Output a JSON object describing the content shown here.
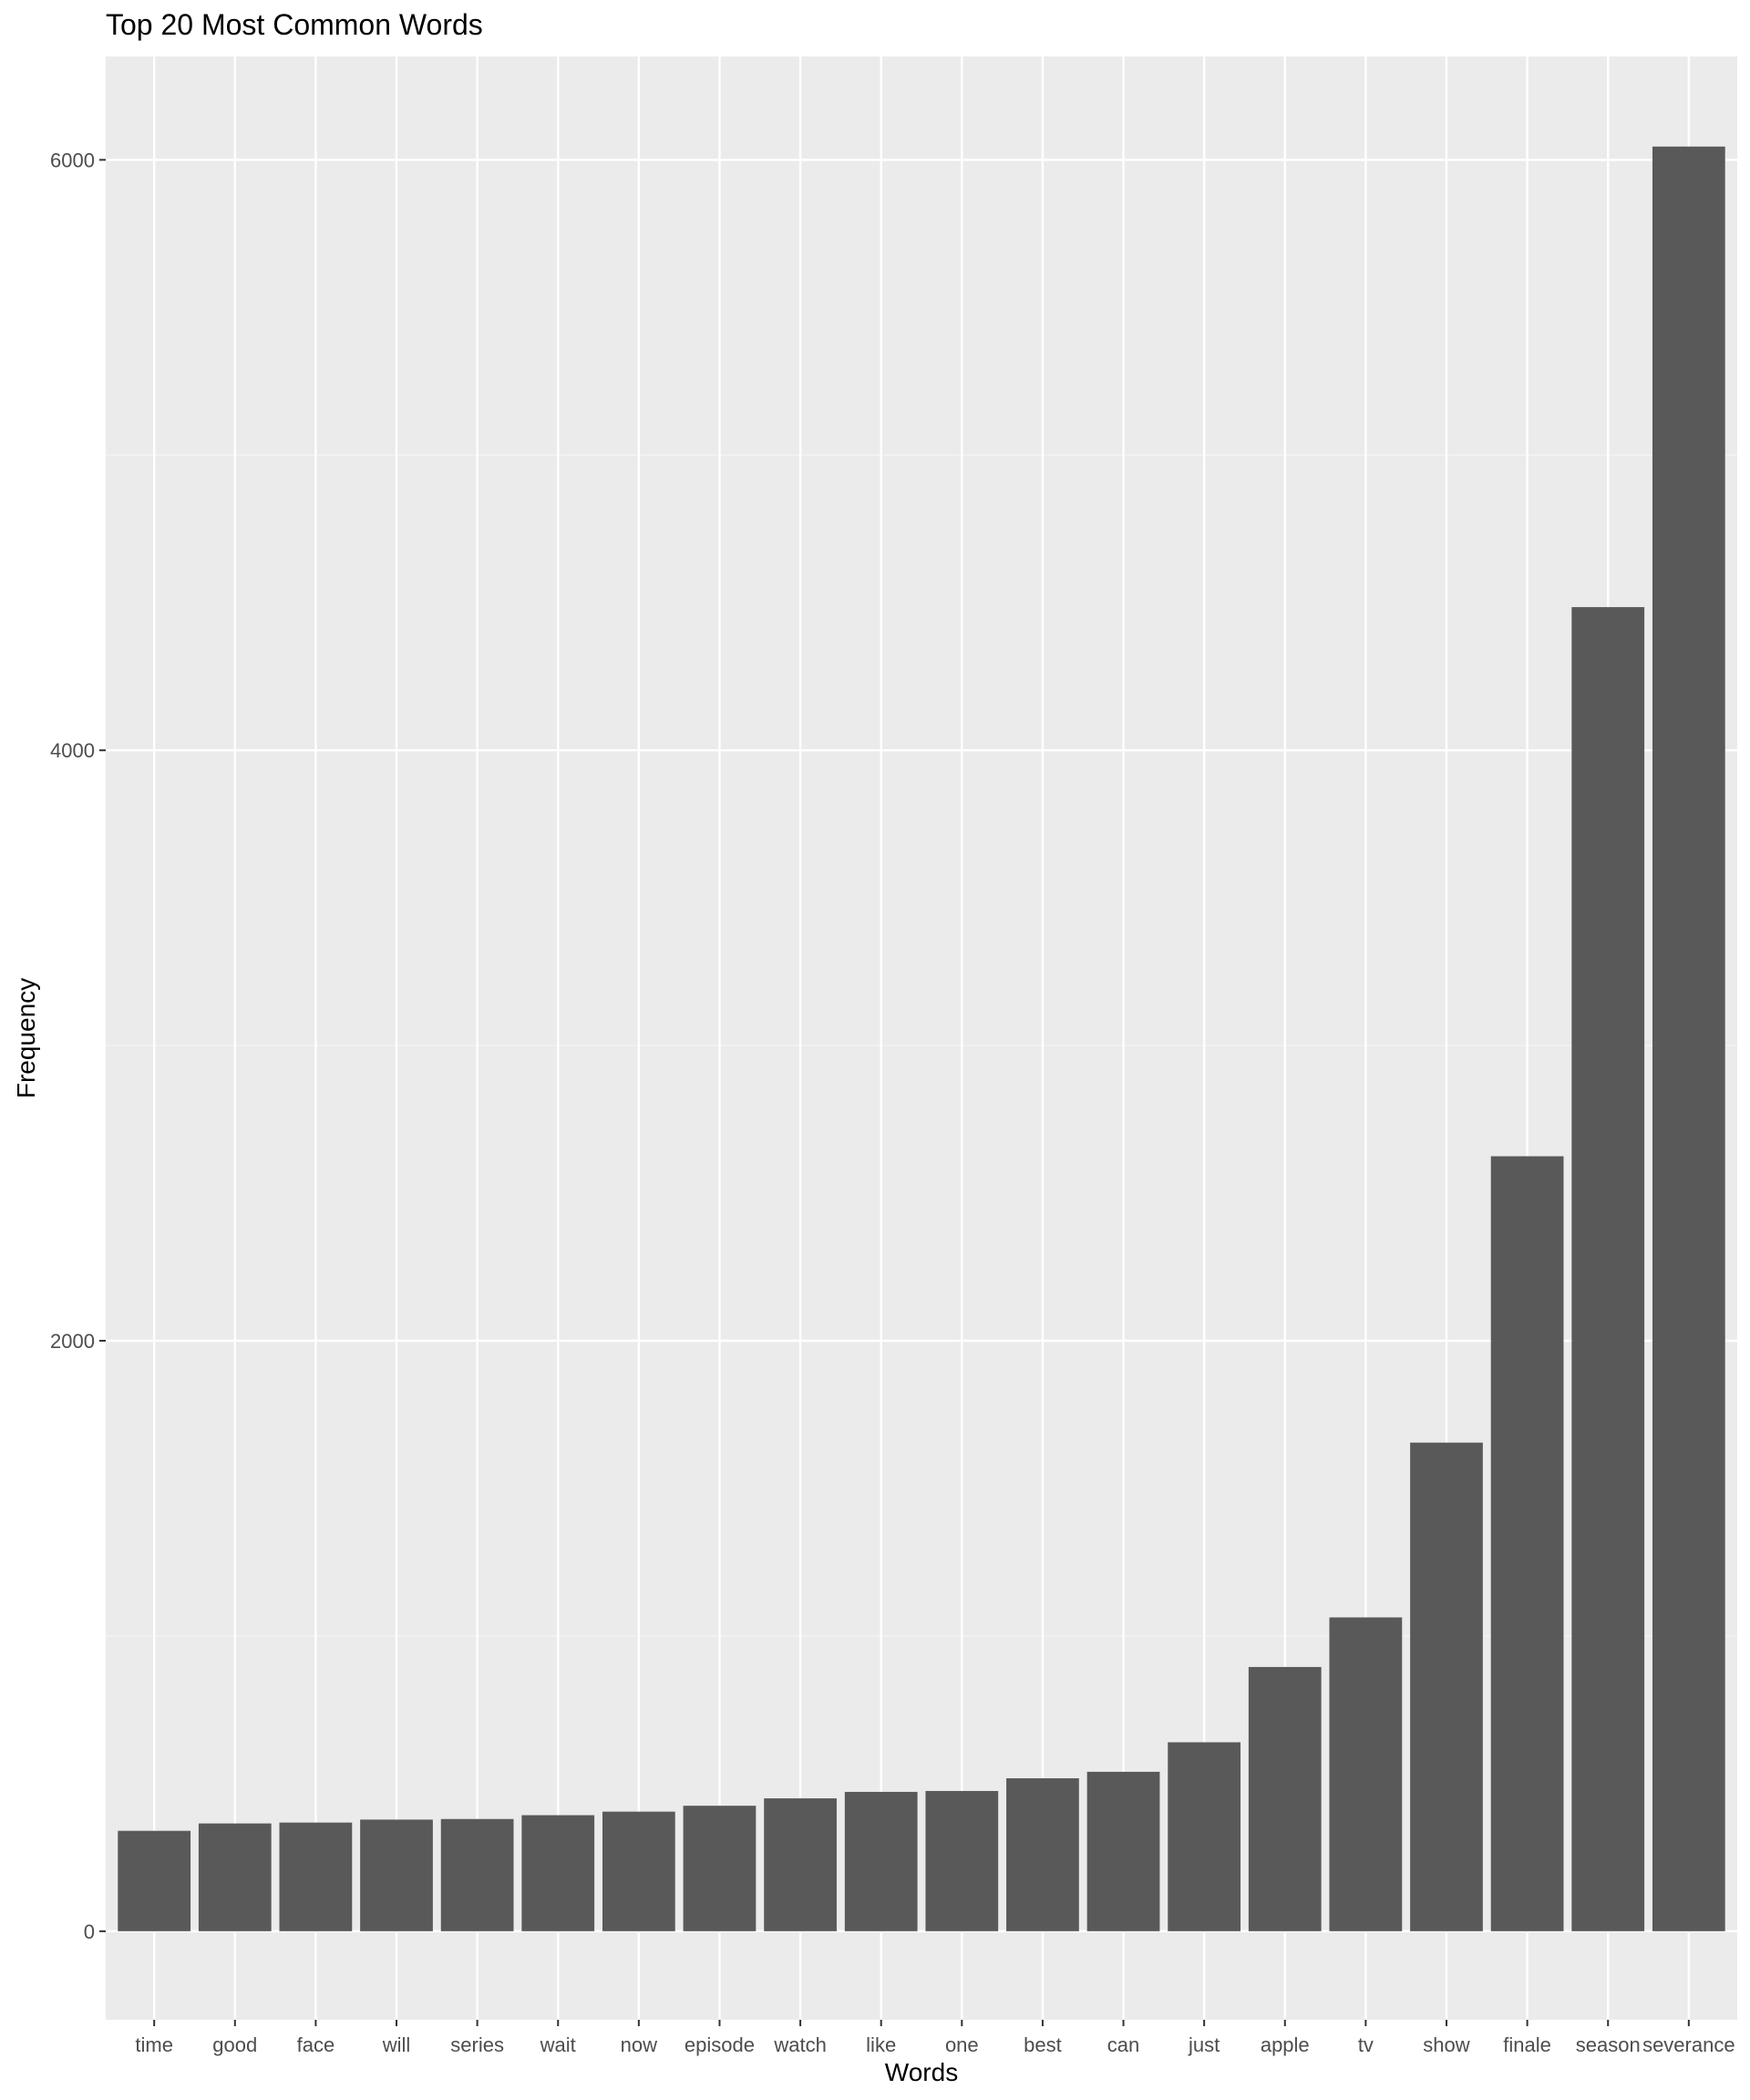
{
  "chart_data": {
    "type": "bar",
    "title": "Top 20 Most Common Words",
    "xlabel": "Words",
    "ylabel": "Frequency",
    "categories": [
      "time",
      "good",
      "face",
      "will",
      "series",
      "wait",
      "now",
      "episode",
      "watch",
      "like",
      "one",
      "best",
      "can",
      "just",
      "apple",
      "tv",
      "show",
      "finale",
      "season",
      "severance"
    ],
    "values": [
      340,
      365,
      368,
      378,
      380,
      393,
      405,
      425,
      450,
      472,
      475,
      518,
      540,
      640,
      895,
      1063,
      1655,
      2625,
      4485,
      6045
    ],
    "yticks": [
      0,
      2000,
      4000,
      6000
    ],
    "ylim": [
      -300,
      6350
    ],
    "grid": true,
    "legend": "none",
    "colors": {
      "bar": "#595959",
      "panel": "#ebebeb",
      "grid_major": "#ffffff",
      "grid_minor": "#f5f5f5",
      "tick_text": "#4d4d4d"
    }
  }
}
